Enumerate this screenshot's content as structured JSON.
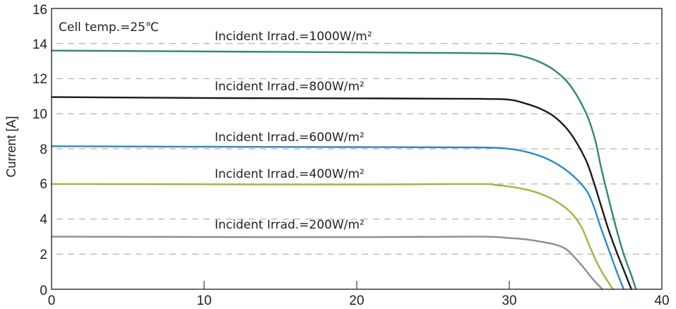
{
  "chart_data": {
    "type": "line",
    "title": "",
    "xlabel": "",
    "ylabel": "Current [A]",
    "xlim": [
      0,
      40
    ],
    "ylim": [
      0,
      16
    ],
    "x_ticks": [
      0,
      10,
      20,
      30,
      40
    ],
    "y_ticks": [
      0,
      2,
      4,
      6,
      8,
      10,
      12,
      14,
      16
    ],
    "grid": "horizontal dashed",
    "annotation": "Cell temp.=25℃",
    "series": [
      {
        "name": "Incident Irrad.=1000W/m²",
        "color": "#2a8c6a",
        "points": [
          [
            0,
            13.6
          ],
          [
            10,
            13.55
          ],
          [
            20,
            13.5
          ],
          [
            28,
            13.45
          ],
          [
            30,
            13.4
          ],
          [
            31,
            13.25
          ],
          [
            32,
            12.95
          ],
          [
            33,
            12.45
          ],
          [
            34,
            11.6
          ],
          [
            35,
            10.1
          ],
          [
            35.6,
            8.6
          ],
          [
            36,
            7.0
          ],
          [
            36.5,
            5.2
          ],
          [
            37,
            3.5
          ],
          [
            37.5,
            2.0
          ],
          [
            38,
            0.8
          ],
          [
            38.3,
            0
          ]
        ]
      },
      {
        "name": "Incident Irrad.=800W/m²",
        "color": "#1a1a1a",
        "points": [
          [
            0,
            10.95
          ],
          [
            10,
            10.9
          ],
          [
            20,
            10.88
          ],
          [
            28,
            10.85
          ],
          [
            30,
            10.8
          ],
          [
            31,
            10.6
          ],
          [
            32,
            10.3
          ],
          [
            33,
            9.8
          ],
          [
            34,
            8.9
          ],
          [
            35,
            7.4
          ],
          [
            35.5,
            6.2
          ],
          [
            36,
            4.8
          ],
          [
            36.5,
            3.4
          ],
          [
            37,
            2.2
          ],
          [
            37.5,
            1.1
          ],
          [
            38,
            0
          ]
        ]
      },
      {
        "name": "Incident Irrad.=600W/m²",
        "color": "#2f8ac4",
        "points": [
          [
            0,
            8.15
          ],
          [
            10,
            8.12
          ],
          [
            20,
            8.1
          ],
          [
            28,
            8.08
          ],
          [
            30,
            8.0
          ],
          [
            31,
            7.85
          ],
          [
            32,
            7.6
          ],
          [
            33,
            7.2
          ],
          [
            34,
            6.6
          ],
          [
            35,
            5.7
          ],
          [
            35.5,
            4.8
          ],
          [
            36,
            3.5
          ],
          [
            36.5,
            2.3
          ],
          [
            37,
            1.1
          ],
          [
            37.5,
            0
          ]
        ]
      },
      {
        "name": "Incident Irrad.=400W/m²",
        "color": "#9ab93a",
        "points": [
          [
            0,
            6.0
          ],
          [
            10,
            5.98
          ],
          [
            20,
            5.97
          ],
          [
            28,
            6.0
          ],
          [
            29,
            5.95
          ],
          [
            30,
            5.85
          ],
          [
            31,
            5.7
          ],
          [
            32,
            5.45
          ],
          [
            33,
            5.05
          ],
          [
            34,
            4.4
          ],
          [
            34.7,
            3.6
          ],
          [
            35.2,
            2.6
          ],
          [
            35.7,
            1.6
          ],
          [
            36.2,
            0.8
          ],
          [
            36.8,
            0
          ]
        ]
      },
      {
        "name": "Incident Irrad.=200W/m²",
        "color": "#8c8c8c",
        "points": [
          [
            0,
            3.0
          ],
          [
            10,
            2.98
          ],
          [
            20,
            2.97
          ],
          [
            28,
            3.0
          ],
          [
            30,
            2.92
          ],
          [
            31,
            2.85
          ],
          [
            32,
            2.72
          ],
          [
            33,
            2.55
          ],
          [
            33.7,
            2.3
          ],
          [
            34.3,
            1.8
          ],
          [
            34.9,
            1.2
          ],
          [
            35.5,
            0.55
          ],
          [
            36.1,
            0
          ]
        ]
      }
    ]
  },
  "labels": {
    "annotation": "Cell temp.=25℃",
    "ylabel": "Current [A]",
    "series_1000": "Incident Irrad.=1000W/m²",
    "series_800": "Incident Irrad.=800W/m²",
    "series_600": "Incident Irrad.=600W/m²",
    "series_400": "Incident Irrad.=400W/m²",
    "series_200": "Incident Irrad.=200W/m²",
    "x_tick_0": "0",
    "x_tick_10": "10",
    "x_tick_20": "20",
    "x_tick_30": "30",
    "x_tick_40": "40",
    "y_tick_0": "0",
    "y_tick_2": "2",
    "y_tick_4": "4",
    "y_tick_6": "6",
    "y_tick_8": "8",
    "y_tick_10": "10",
    "y_tick_12": "12",
    "y_tick_14": "14",
    "y_tick_16": "16"
  }
}
